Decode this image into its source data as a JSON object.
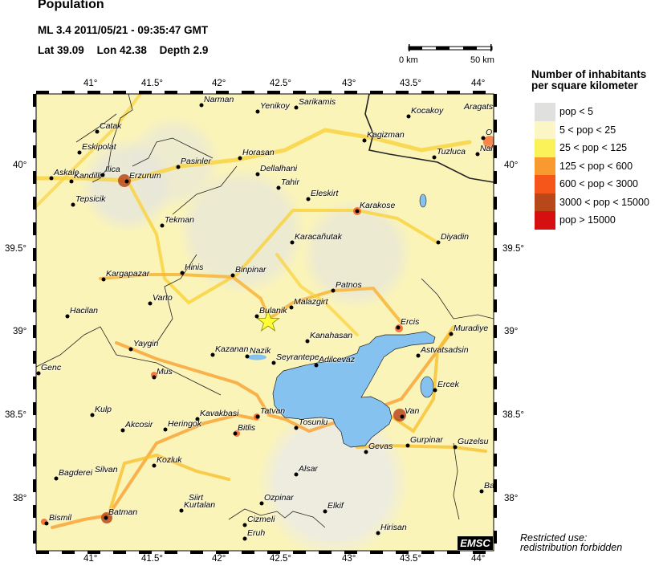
{
  "header": {
    "title": "Population",
    "event": "ML 3.4  2011/05/21 - 09:35:47 GMT",
    "lat": "Lat 39.09",
    "lon": "Lon  42.38",
    "depth": "Depth  2.9"
  },
  "scale_bar": {
    "start": "0 km",
    "end": "50 km"
  },
  "axes": {
    "lon_ticks": [
      "41°",
      "41.5°",
      "42°",
      "42.5°",
      "43°",
      "43.5°",
      "44°"
    ],
    "lat_ticks": [
      "40°",
      "39.5°",
      "39°",
      "38.5°",
      "38°"
    ]
  },
  "legend": {
    "title_line1": "Number of inhabitants",
    "title_line2": "per square kilometer",
    "items": [
      {
        "label": "pop < 5",
        "color": "#e0e0de"
      },
      {
        "label": "5 < pop < 25",
        "color": "#fbf6c4"
      },
      {
        "label": "25 < pop < 125",
        "color": "#fbf25a"
      },
      {
        "label": "125 < pop < 600",
        "color": "#f89a2e"
      },
      {
        "label": "600 < pop < 3000",
        "color": "#f6561a"
      },
      {
        "label": "3000 < pop < 15000",
        "color": "#b8481a"
      },
      {
        "label": "pop > 15000",
        "color": "#d61010"
      }
    ]
  },
  "colors": {
    "lake": "#86c2f0",
    "epicenter": "#ffff33"
  },
  "epicenter_icon": "star-icon",
  "cities": [
    "Narman",
    "Yenikoy",
    "Sarikamis",
    "Kocakoy",
    "Aragats",
    "Catak",
    "Eskipolat",
    "Askale",
    "Kandilli",
    "Ilica",
    "Erzurum",
    "Pasinler",
    "Horasan",
    "Dellalhani",
    "Tahir",
    "Eleskirt",
    "Karakose",
    "Kagizman",
    "Tuzluca",
    "Diyadin",
    "Karacañutak",
    "Tepsicik",
    "Tekman",
    "Hinis",
    "Binpinar",
    "Kargapazar",
    "Varto",
    "Hacilan",
    "Bulanik",
    "Malazgirt",
    "Patnos",
    "Ercis",
    "Muradiye",
    "Kanahasan",
    "Astvatsadsin",
    "Seyrantepe",
    "Adilcevaz",
    "Nazik",
    "Kazanan",
    "Yaygin",
    "Genc",
    "Mus",
    "Ercek",
    "Van",
    "Tatvan",
    "Kavakbasi",
    "Bitlis",
    "Kulp",
    "Akcosir",
    "Heringok",
    "Tosunlu",
    "Gevas",
    "Gurpinar",
    "Guzelsu",
    "Kozluk",
    "Silvan",
    "Bagderei",
    "Alsar",
    "Batman",
    "Bismil",
    "Kurtalan",
    "Siirt",
    "Ozpinar",
    "Elkif",
    "Cizmeli",
    "Eruh",
    "Hirisan",
    "Ba",
    "O",
    "Nal"
  ],
  "logo": "EMSC",
  "notice_line1": "Restricted use:",
  "notice_line2": "redistribution forbidden"
}
